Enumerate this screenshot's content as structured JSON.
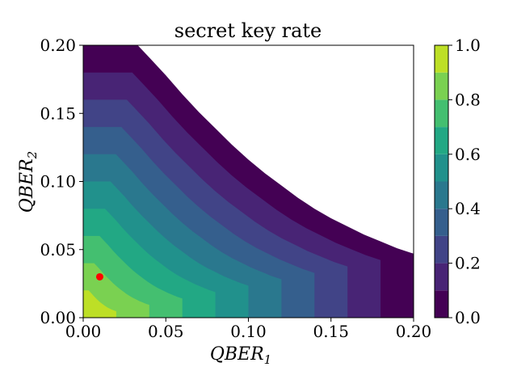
{
  "chart_data": {
    "type": "contour",
    "title": "secret key rate",
    "xlabel": "QBER",
    "xlabel_sub": "1",
    "ylabel": "QBER",
    "ylabel_sub": "2",
    "xlim": [
      0.0,
      0.2
    ],
    "ylim": [
      0.0,
      0.2
    ],
    "xticks": [
      "0.00",
      "0.05",
      "0.10",
      "0.15",
      "0.20"
    ],
    "xtick_values": [
      0.0,
      0.05,
      0.1,
      0.15,
      0.2
    ],
    "yticks": [
      "0.00",
      "0.05",
      "0.10",
      "0.15",
      "0.20"
    ],
    "ytick_values": [
      0.0,
      0.05,
      0.1,
      0.15,
      0.2
    ],
    "levels": [
      0.0,
      0.1,
      0.2,
      0.3,
      0.4,
      0.5,
      0.6,
      0.7,
      0.8,
      0.9,
      1.0
    ],
    "colorbar_ticks": [
      "0.0",
      "0.2",
      "0.4",
      "0.6",
      "0.8",
      "1.0"
    ],
    "colorbar_tick_values": [
      0.0,
      0.2,
      0.4,
      0.6,
      0.8,
      1.0
    ],
    "colors": [
      "#440154",
      "#482475",
      "#414487",
      "#355f8d",
      "#2a788e",
      "#21918c",
      "#22a884",
      "#44bf70",
      "#7ad151",
      "#bddf26",
      "#fde725"
    ],
    "zero_contour": [
      [
        0.033,
        0.2
      ],
      [
        0.04,
        0.191
      ],
      [
        0.05,
        0.178
      ],
      [
        0.06,
        0.164
      ],
      [
        0.07,
        0.151
      ],
      [
        0.08,
        0.139
      ],
      [
        0.09,
        0.127
      ],
      [
        0.1,
        0.116
      ],
      [
        0.11,
        0.106
      ],
      [
        0.12,
        0.097
      ],
      [
        0.13,
        0.088
      ],
      [
        0.14,
        0.08
      ],
      [
        0.15,
        0.073
      ],
      [
        0.16,
        0.067
      ],
      [
        0.17,
        0.061
      ],
      [
        0.18,
        0.056
      ],
      [
        0.19,
        0.051
      ],
      [
        0.2,
        0.047
      ]
    ],
    "marker": {
      "x": 0.01,
      "y": 0.03,
      "color": "#ff0000"
    }
  }
}
